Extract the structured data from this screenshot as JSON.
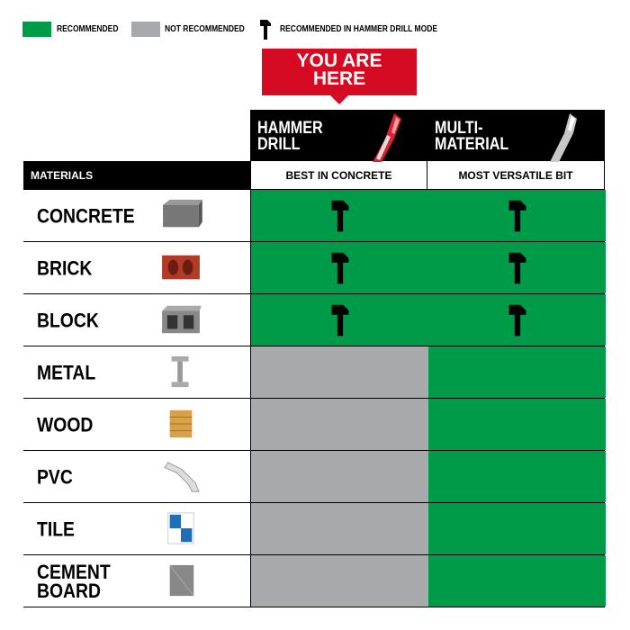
{
  "colors": {
    "recommended": "#009b48",
    "not_recommended": "#a7a9ac",
    "callout": "#d50b24"
  },
  "legend": [
    {
      "label": "RECOMMENDED",
      "swatch": "green"
    },
    {
      "label": "NOT RECOMMENDED",
      "swatch": "gray"
    },
    {
      "label": "RECOMMENDED IN HAMMER DRILL MODE",
      "icon": "hammer-icon"
    }
  ],
  "callout": {
    "line1": "YOU ARE",
    "line2": "HERE"
  },
  "columns": [
    {
      "title1": "HAMMER",
      "title2": "DRILL",
      "subtitle": "BEST IN CONCRETE",
      "icon": "red-drill-bit-icon"
    },
    {
      "title1": "MULTI-",
      "title2": "MATERIAL",
      "subtitle": "MOST VERSATILE BIT",
      "icon": "silver-drill-bit-icon"
    }
  ],
  "materials_header": "MATERIALS",
  "rows": [
    {
      "l1": "CONCRETE",
      "l2": "",
      "c1": "recommended-hammer",
      "c2": "recommended-hammer"
    },
    {
      "l1": "BRICK",
      "l2": "",
      "c1": "recommended-hammer",
      "c2": "recommended-hammer"
    },
    {
      "l1": "BLOCK",
      "l2": "",
      "c1": "recommended-hammer",
      "c2": "recommended-hammer"
    },
    {
      "l1": "METAL",
      "l2": "",
      "c1": "not-recommended",
      "c2": "recommended"
    },
    {
      "l1": "WOOD",
      "l2": "",
      "c1": "not-recommended",
      "c2": "recommended"
    },
    {
      "l1": "PVC",
      "l2": "",
      "c1": "not-recommended",
      "c2": "recommended"
    },
    {
      "l1": "TILE",
      "l2": "",
      "c1": "not-recommended",
      "c2": "recommended"
    },
    {
      "l1": "CEMENT",
      "l2": "BOARD",
      "c1": "not-recommended",
      "c2": "recommended"
    }
  ]
}
